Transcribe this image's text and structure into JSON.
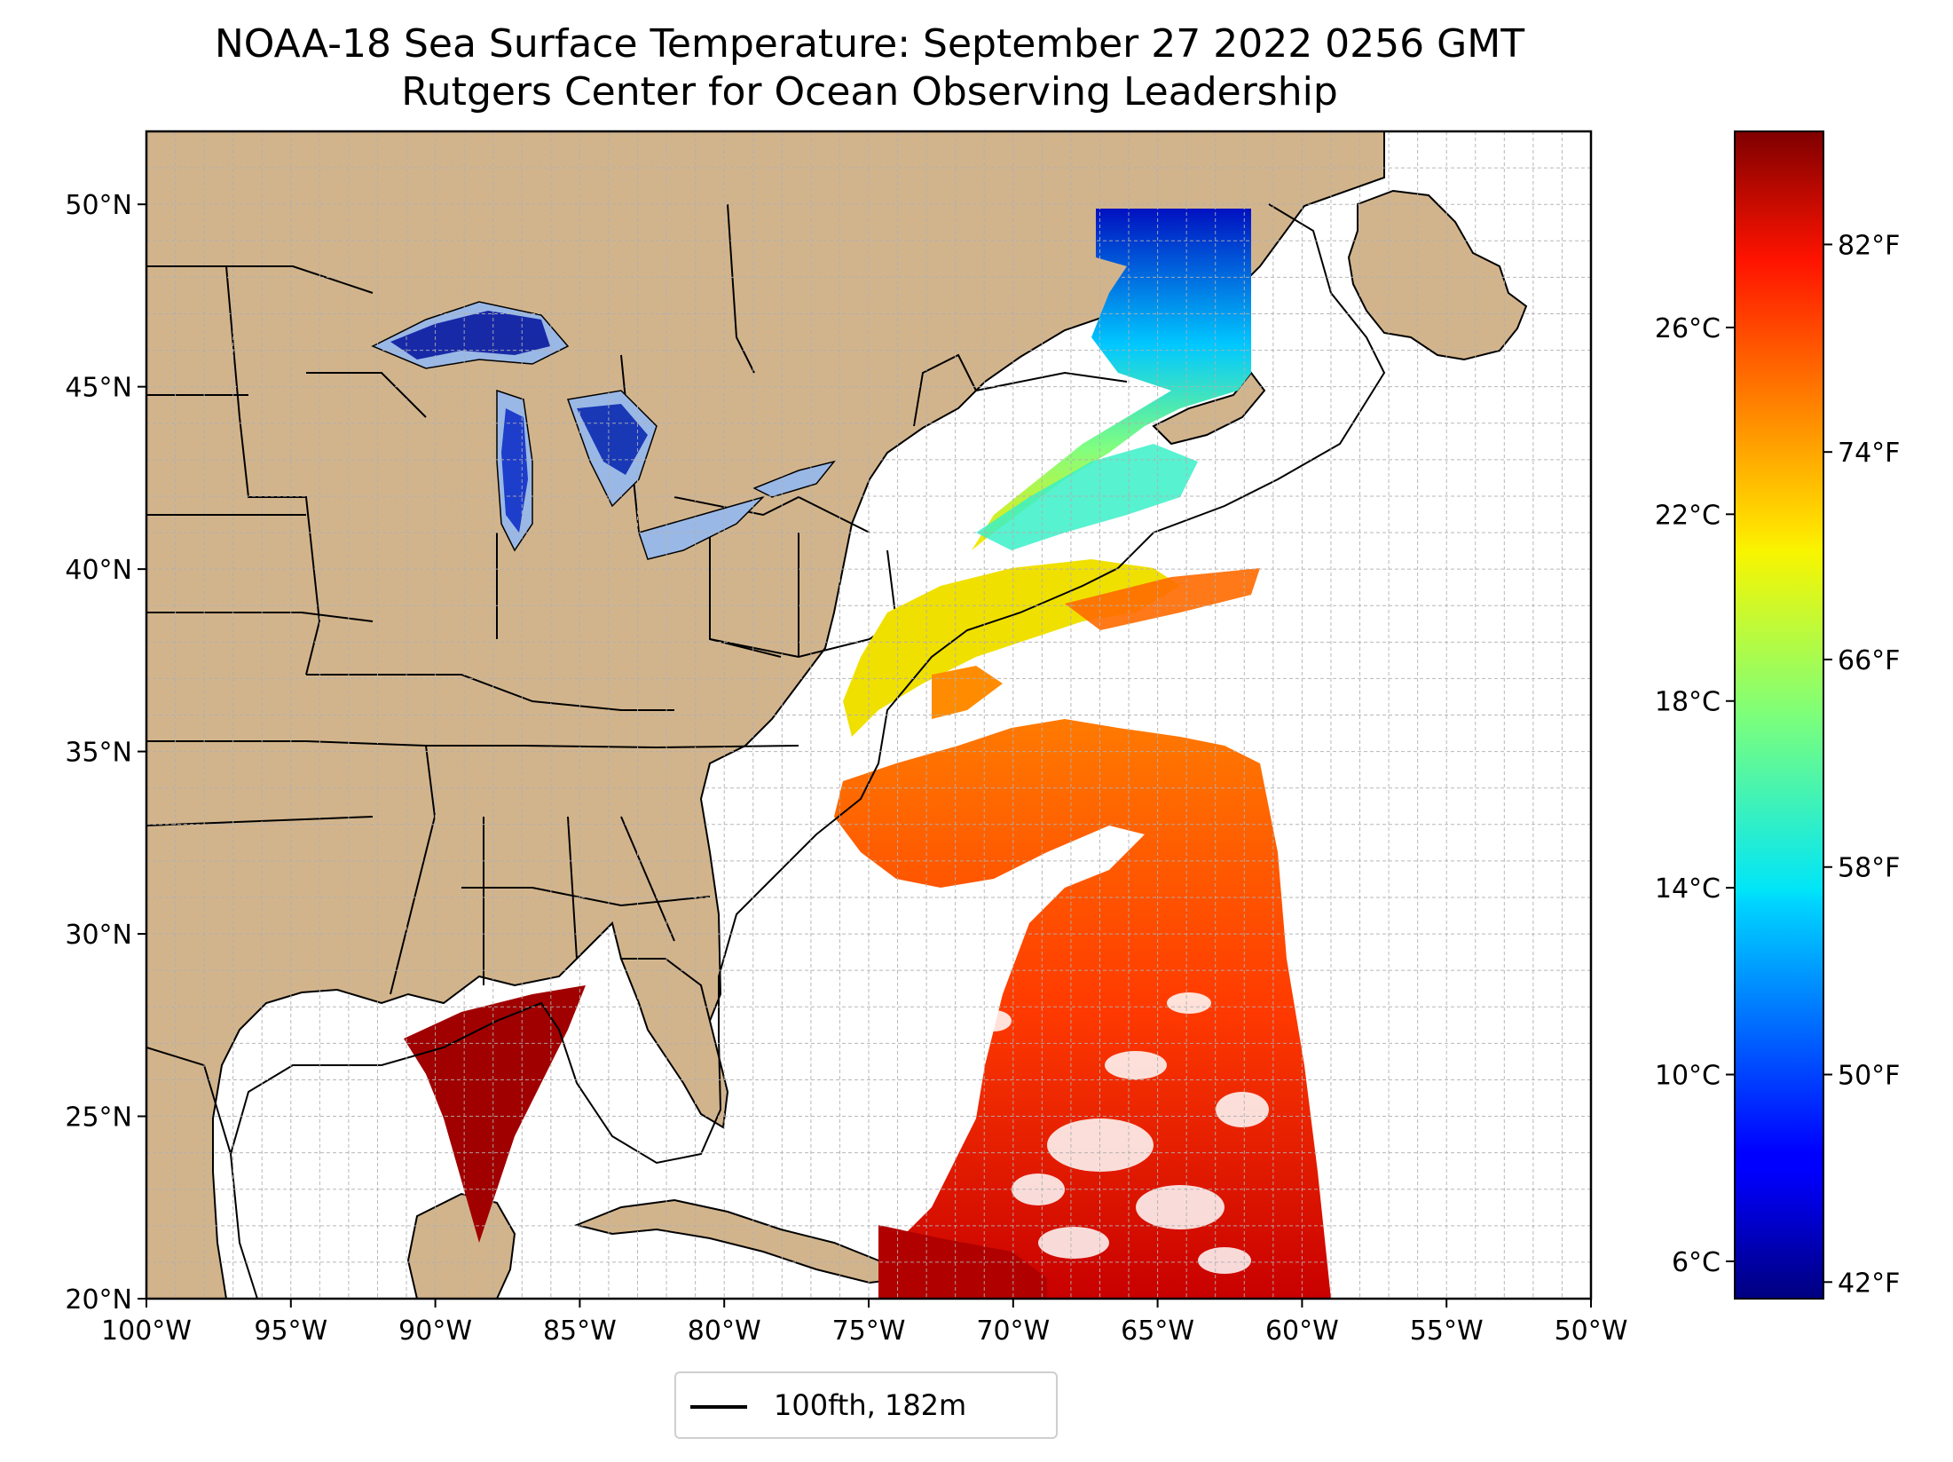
{
  "title": {
    "line1": "NOAA-18 Sea Surface Temperature: September 27 2022 0256 GMT",
    "line2": "Rutgers Center for Ocean Observing Leadership"
  },
  "map": {
    "lon_range": [
      -100,
      -50
    ],
    "lat_range": [
      20,
      52
    ],
    "x_ticks": [
      "100°W",
      "95°W",
      "90°W",
      "85°W",
      "80°W",
      "75°W",
      "70°W",
      "65°W",
      "60°W",
      "55°W",
      "50°W"
    ],
    "y_ticks": [
      "20°N",
      "25°N",
      "30°N",
      "35°N",
      "40°N",
      "45°N",
      "50°N"
    ],
    "grid": true,
    "land_color": "#d2b48c",
    "lake_color": "#9ab8e6"
  },
  "colorbar": {
    "colormap": "jet",
    "celsius_ticks": [
      "6°C",
      "10°C",
      "14°C",
      "18°C",
      "22°C",
      "26°C"
    ],
    "fahrenheit_ticks": [
      "42°F",
      "50°F",
      "58°F",
      "66°F",
      "74°F",
      "82°F"
    ],
    "range_c": [
      5.2,
      30.2
    ]
  },
  "legend": {
    "label": "100fth, 182m",
    "position": "bottom-center"
  }
}
